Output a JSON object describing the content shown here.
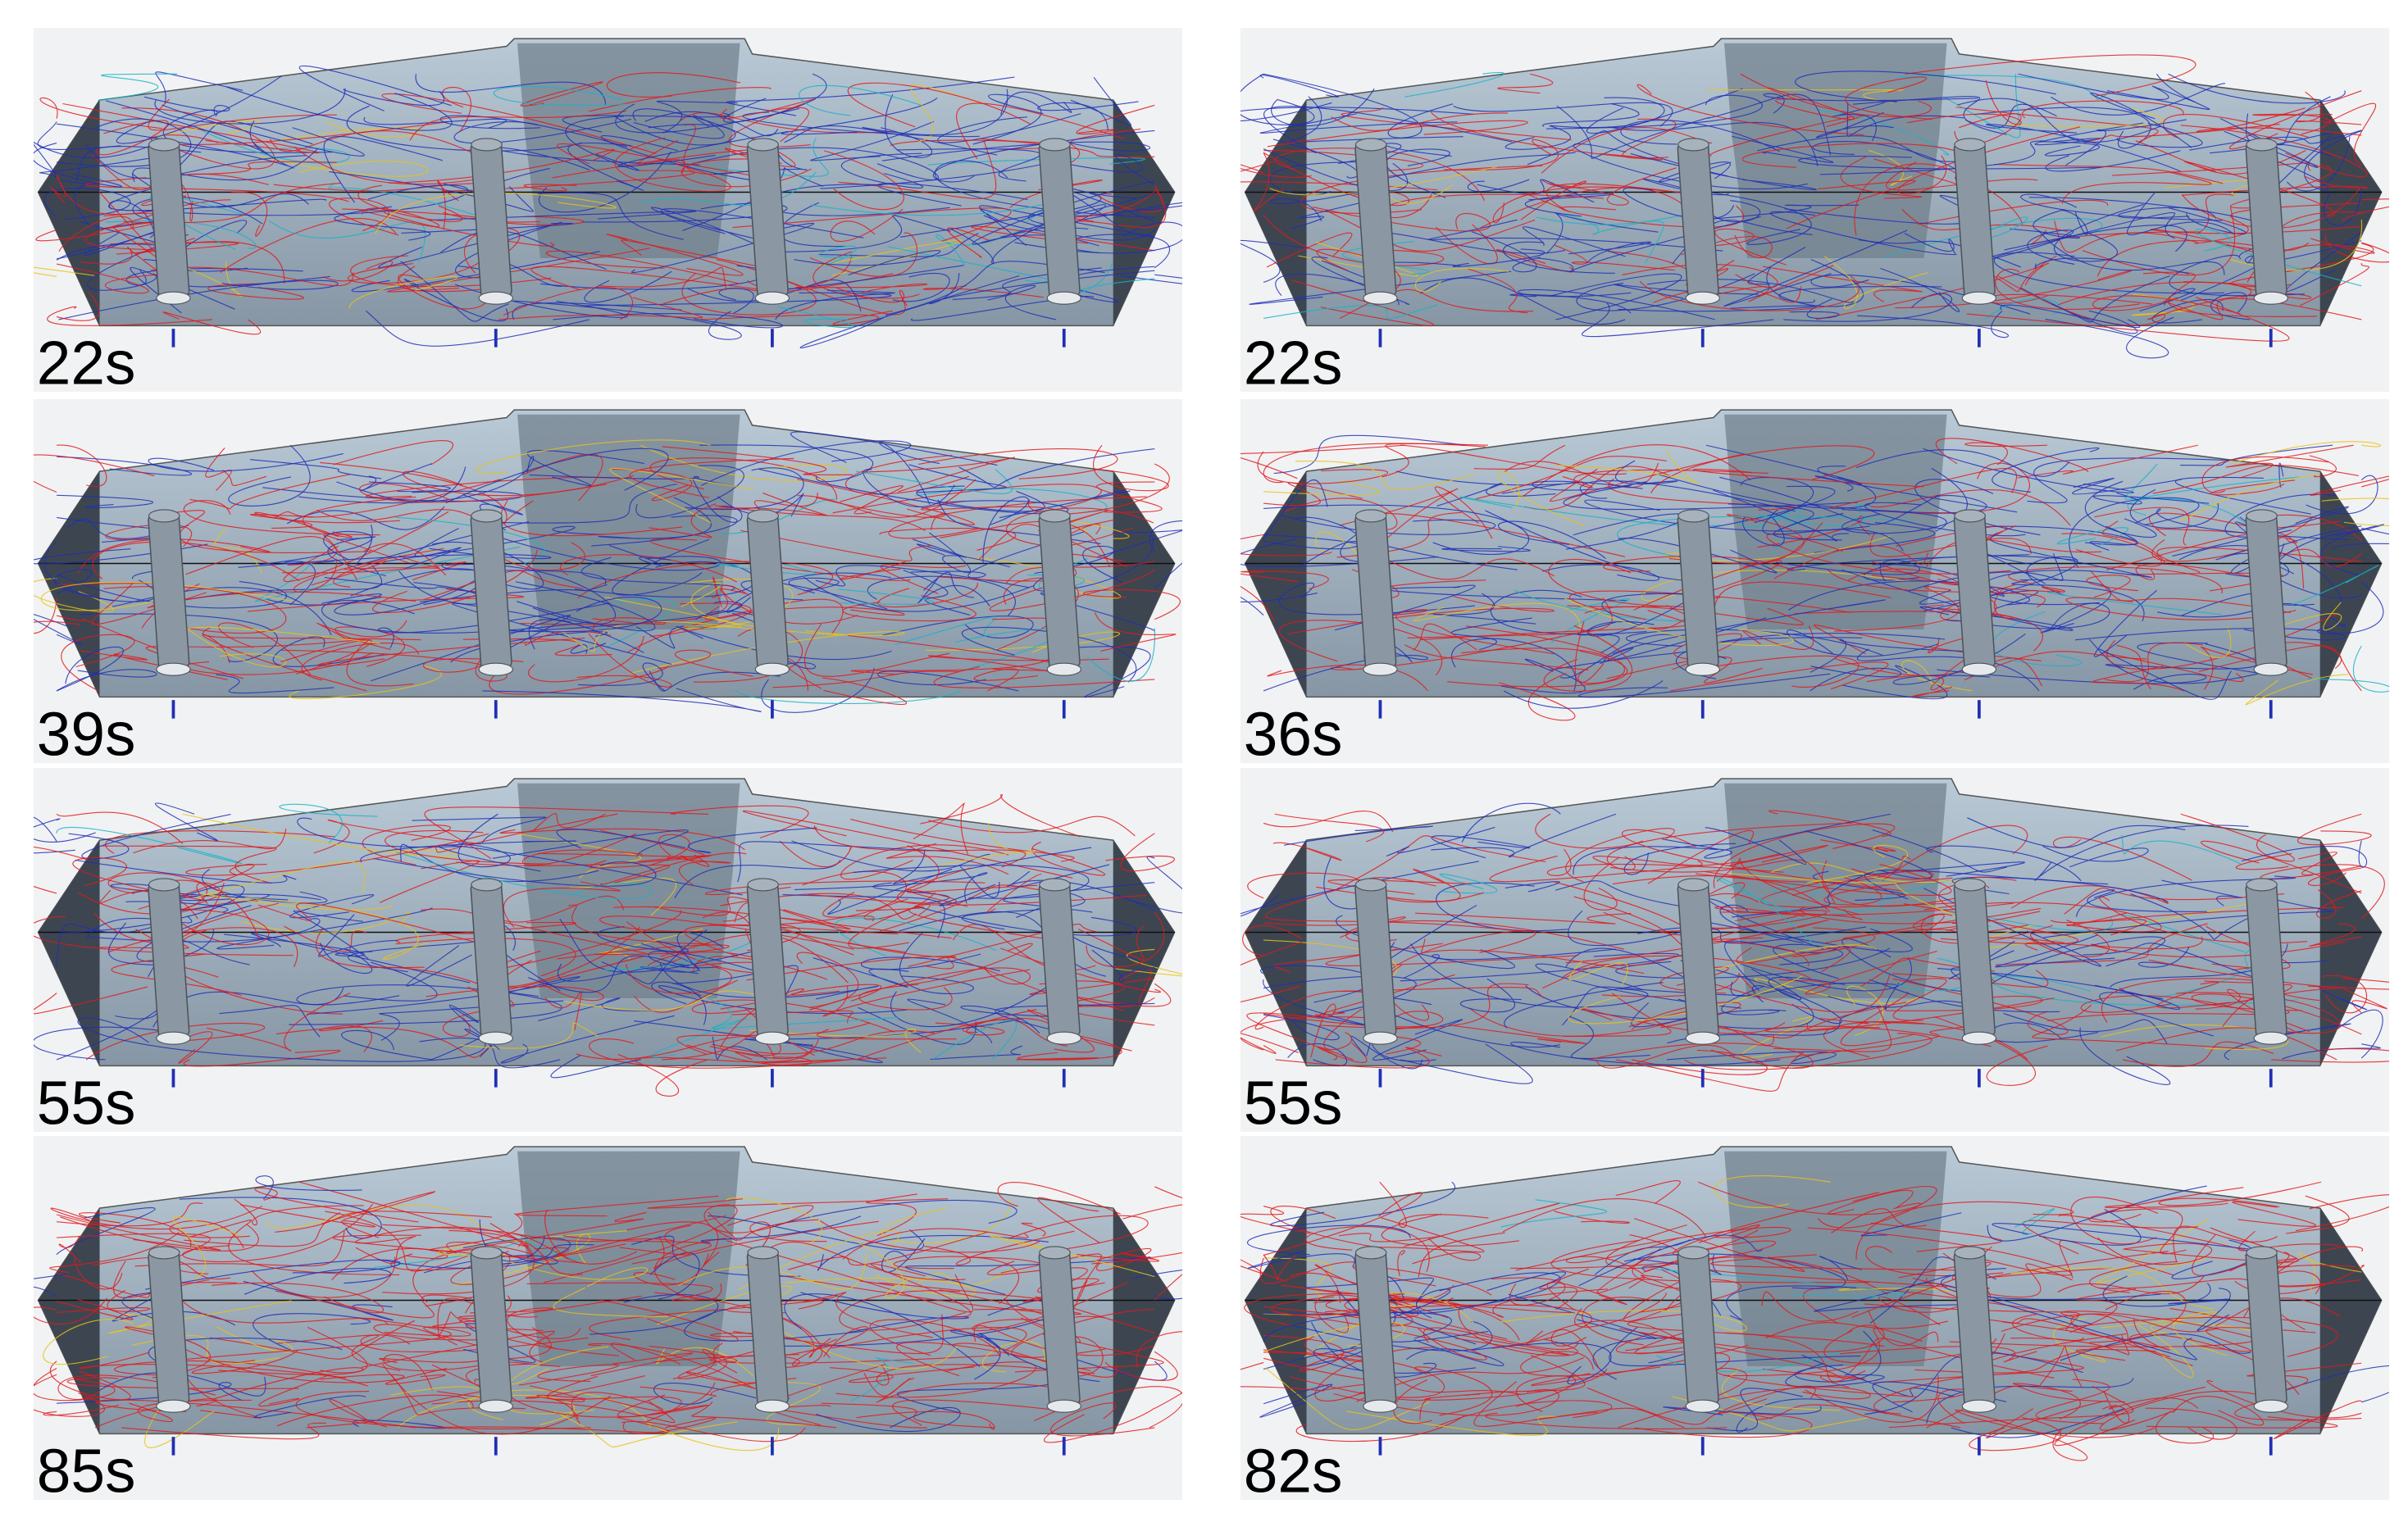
{
  "panels": [
    {
      "label": "22s"
    },
    {
      "label": "22s"
    },
    {
      "label": "39s"
    },
    {
      "label": "36s"
    },
    {
      "label": "55s"
    },
    {
      "label": "55s"
    },
    {
      "label": "85s"
    },
    {
      "label": "82s"
    }
  ]
}
